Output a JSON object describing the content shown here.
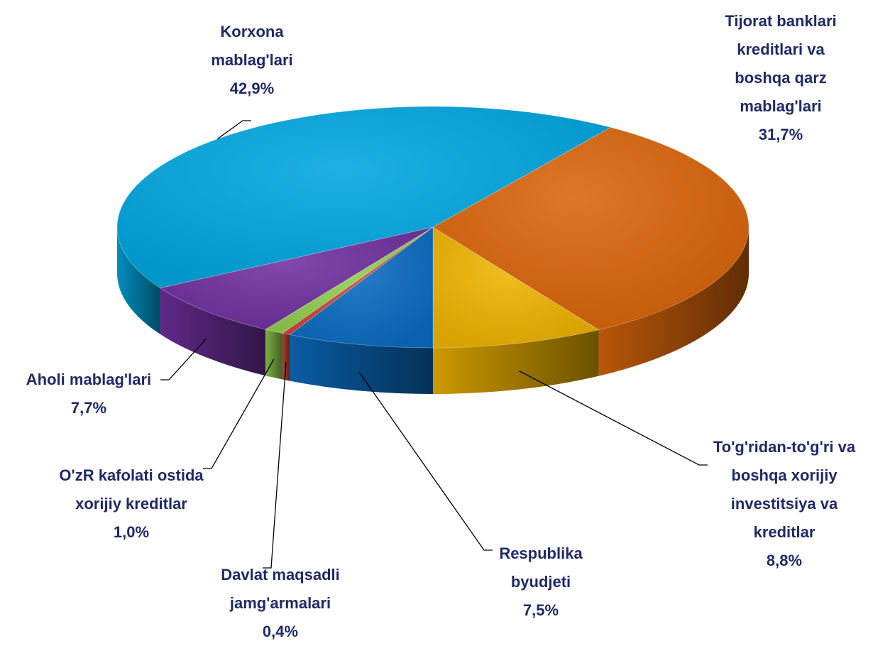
{
  "chart_data": {
    "type": "pie3d",
    "categories": [
      "Tijorat banklari kreditlari va boshqa qarz mablag'lari",
      "To'g'ridan-to'g'ri va boshqa xorijiy investitsiya va kreditlar",
      "Respublika byudjeti",
      "Davlat maqsadli jamg'armalari",
      "O'zR kafolati ostida xorijiy kreditlar",
      "Aholi mablag'lari",
      "Korxona mablag'lari"
    ],
    "values": [
      31.7,
      8.8,
      7.5,
      0.4,
      1.0,
      7.7,
      42.9
    ],
    "value_labels": [
      "31,7%",
      "8,8%",
      "7,5%",
      "0,4%",
      "1,0%",
      "7,7%",
      "42,9%"
    ],
    "colors": [
      "#d9650b",
      "#f0b400",
      "#0b6cc0",
      "#d0463c",
      "#92d050",
      "#7030a0",
      "#00a6e0"
    ]
  }
}
